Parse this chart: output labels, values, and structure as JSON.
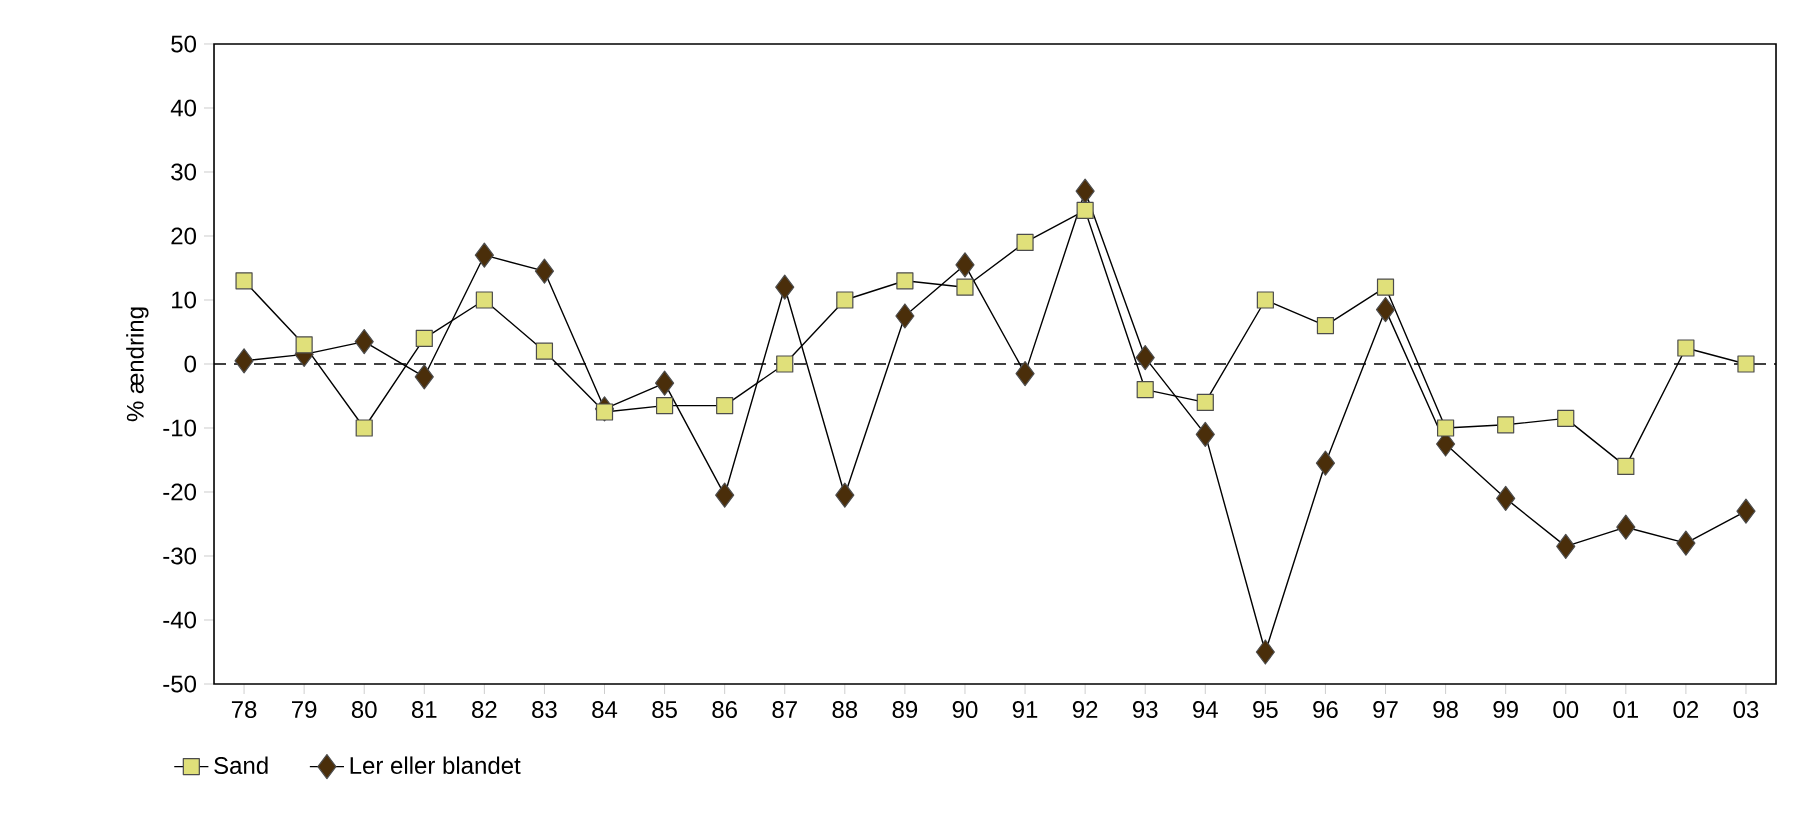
{
  "chart_data": {
    "type": "line",
    "ylabel": "% ændring",
    "categories": [
      "78",
      "79",
      "80",
      "81",
      "82",
      "83",
      "84",
      "85",
      "86",
      "87",
      "88",
      "89",
      "90",
      "91",
      "92",
      "93",
      "94",
      "95",
      "96",
      "97",
      "98",
      "99",
      "00",
      "01",
      "02",
      "03"
    ],
    "series": [
      {
        "name": "Sand",
        "color": "#e0e07a",
        "marker": "square",
        "values": [
          13,
          3,
          -10,
          4,
          10,
          2,
          -7.5,
          -6.5,
          -6.5,
          0,
          10,
          13,
          12,
          19,
          24,
          -4,
          -6,
          10,
          6,
          12,
          -10,
          -9.5,
          -8.5,
          -16,
          2.5,
          0
        ]
      },
      {
        "name": "Ler eller blandet",
        "color": "#4a2e0a",
        "marker": "diamond",
        "values": [
          0.5,
          1.5,
          3.5,
          -2,
          17,
          14.5,
          -7,
          -3,
          -20.5,
          12,
          -20.5,
          7.5,
          15.5,
          -1.5,
          27,
          1,
          -11,
          -45,
          -15.5,
          8.5,
          -12.5,
          -21,
          -28.5,
          -25.5,
          -28,
          -23
        ]
      }
    ],
    "ylim": [
      -50,
      50
    ],
    "yticks": [
      -50,
      -40,
      -30,
      -20,
      -10,
      0,
      10,
      20,
      30,
      40,
      50
    ],
    "ref_lines": [
      {
        "axis": "y",
        "value": 0,
        "line_style": "dashed"
      }
    ],
    "grid": false,
    "legend": "bottom left",
    "line_style": "solid"
  }
}
